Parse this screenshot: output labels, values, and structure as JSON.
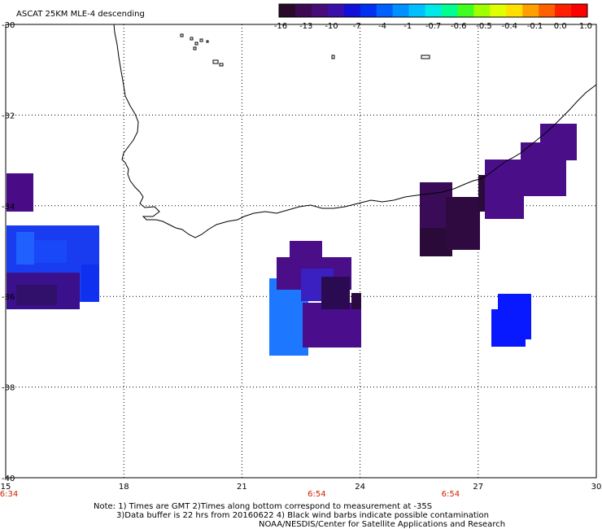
{
  "title": "ASCAT 25KM MLE-4 descending",
  "colorbar": {
    "colors": [
      "#2a0a2a",
      "#3c0a50",
      "#460c78",
      "#3a10a8",
      "#1010d8",
      "#0030f0",
      "#0060ff",
      "#0090ff",
      "#00c0ff",
      "#00e8e8",
      "#00ff90",
      "#40ff20",
      "#a0ff00",
      "#e0ff00",
      "#ffe000",
      "#ffa000",
      "#ff6000",
      "#ff2000",
      "#ff0000"
    ],
    "labels": [
      "-16",
      "-13",
      "-10",
      "-7",
      "-4",
      "-1",
      "-0.7",
      "-0.6",
      "-0.5",
      "-0.4",
      "-0.1",
      "0.0",
      "1.0"
    ]
  },
  "axes": {
    "lon_ticks": [
      "15",
      "18",
      "21",
      "24",
      "27",
      "30"
    ],
    "lat_ticks": [
      "-30",
      "-32",
      "-34",
      "-36",
      "-38",
      "-40"
    ],
    "lon_range": [
      15,
      30
    ],
    "lat_range": [
      -40,
      -30
    ]
  },
  "pass_times": [
    {
      "lon": 15,
      "label": "6:34"
    },
    {
      "lon": 22.9,
      "label": "6:54"
    },
    {
      "lon": 26.3,
      "label": "6:54"
    }
  ],
  "notes": [
    "Note: 1) Times are GMT 2)Times along bottom correspond to measurement at -35S",
    "3)Data buffer is 22 hrs from 20160622 4) Black wind barbs indicate possible contamination",
    "NOAA/NESDIS/Center for Satellite Applications and Research"
  ],
  "map_colors": {
    "coast": "#000000",
    "grid": "#000000"
  }
}
